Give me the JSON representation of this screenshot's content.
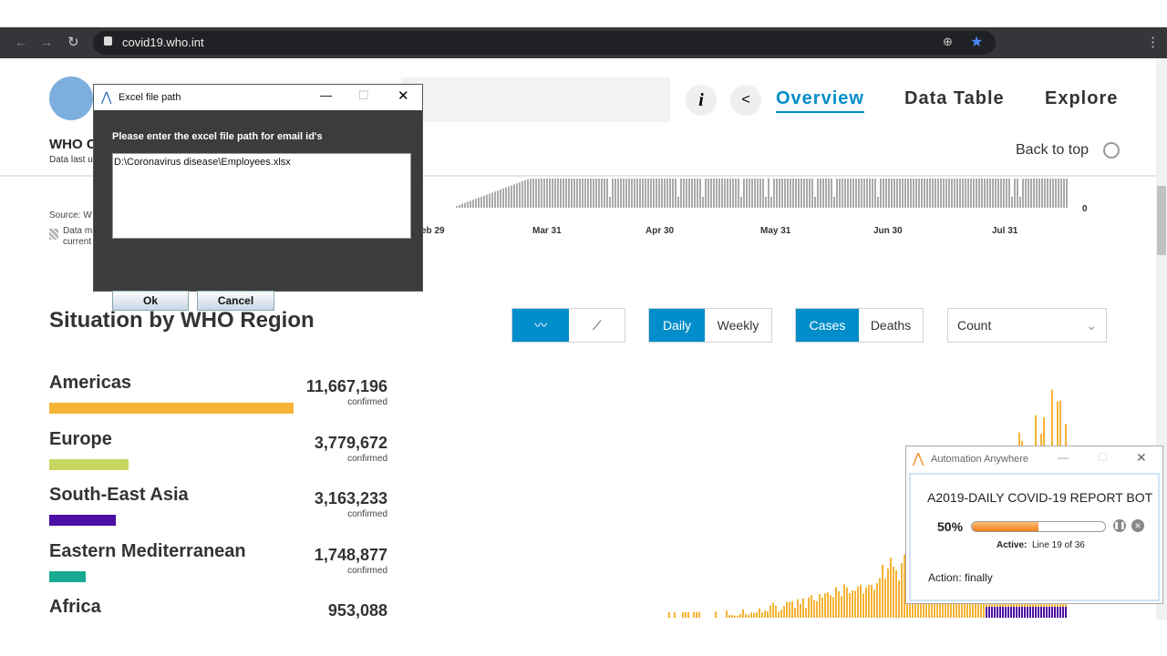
{
  "browser": {
    "url": "covid19.who.int"
  },
  "header": {
    "title_fragment": "WHO C",
    "updated_fragment": "Data last u",
    "nav": [
      "Overview",
      "Data Table",
      "Explore"
    ],
    "back_to_top": "Back to top"
  },
  "timeline": {
    "x_labels": [
      "eb 29",
      "Mar 31",
      "Apr 30",
      "May 31",
      "Jun 30",
      "Jul 31"
    ],
    "y_label": "0",
    "source_fragment": "Source: W",
    "legend_fragment": [
      "Data m",
      "current"
    ]
  },
  "region_section": {
    "title": "Situation by WHO Region",
    "toggles": {
      "period": [
        "Daily",
        "Weekly"
      ],
      "measure": [
        "Cases",
        "Deaths"
      ],
      "scale": "Count"
    },
    "regions": [
      {
        "name": "Americas",
        "value": "11,667,196",
        "note": "confirmed",
        "color": "#f5b335"
      },
      {
        "name": "Europe",
        "value": "3,779,672",
        "note": "confirmed",
        "color": "#c7d65e"
      },
      {
        "name": "South-East Asia",
        "value": "3,163,233",
        "note": "confirmed",
        "color": "#4c0ea3"
      },
      {
        "name": "Eastern Mediterranean",
        "value": "1,748,877",
        "note": "confirmed",
        "color": "#1aaa92"
      },
      {
        "name": "Africa",
        "value": "953,088"
      }
    ]
  },
  "excel_dialog": {
    "title": "Excel file path",
    "prompt": "Please enter the excel file path for email id's",
    "input": "D:\\Coronavirus disease\\Employees.xlsx",
    "buttons": [
      "Ok",
      "Cancel"
    ]
  },
  "bot_window": {
    "title": "Automation Anywhere",
    "bot_name": "A2019-DAILY COVID-19 REPORT BOT",
    "progress": "50%",
    "active_label": "Active:",
    "active_text": "Line 19 of 36",
    "action": "Action: finally"
  }
}
